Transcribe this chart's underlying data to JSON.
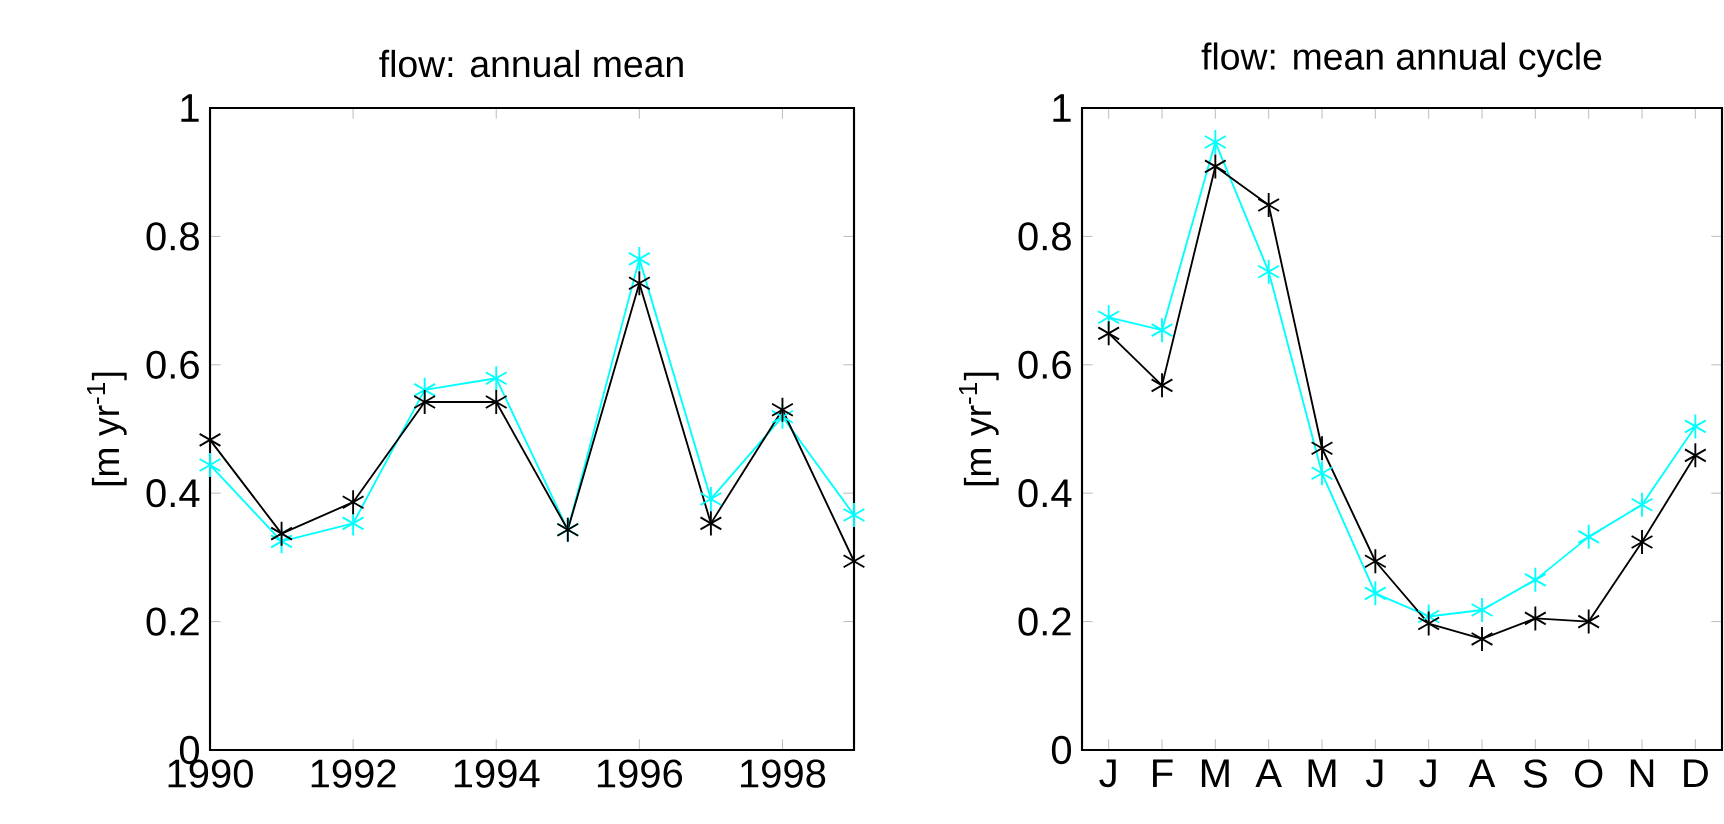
{
  "chart_data": [
    {
      "type": "line",
      "title": "flow: annual mean",
      "ylabel": "[m yr$^{-1}$]",
      "x": [
        1990,
        1991,
        1992,
        1993,
        1994,
        1995,
        1996,
        1997,
        1998,
        1999
      ],
      "series": [
        {
          "color": "#00ffff",
          "values": [
            0.444,
            0.325,
            0.353,
            0.561,
            0.579,
            0.343,
            0.765,
            0.391,
            0.519,
            0.366
          ]
        },
        {
          "color": "#000000",
          "values": [
            0.483,
            0.337,
            0.386,
            0.542,
            0.542,
            0.343,
            0.727,
            0.353,
            0.53,
            0.294
          ]
        }
      ],
      "xlim": [
        1990,
        1999
      ],
      "xticks": [
        1990,
        1992,
        1994,
        1996,
        1998
      ],
      "ylim": [
        0,
        1
      ],
      "yticks": [
        0,
        0.2,
        0.4,
        0.6,
        0.8,
        1
      ],
      "marker": "cross",
      "line_style": "solid",
      "grid": false
    },
    {
      "type": "line",
      "title": "flow: mean annual cycle",
      "ylabel": "[m yr$^{-1}$]",
      "categories": [
        "J",
        "F",
        "M",
        "A",
        "M",
        "J",
        "J",
        "A",
        "S",
        "O",
        "N",
        "D"
      ],
      "series": [
        {
          "color": "#00ffff",
          "values": [
            0.674,
            0.654,
            0.947,
            0.745,
            0.431,
            0.244,
            0.208,
            0.218,
            0.265,
            0.332,
            0.382,
            0.504
          ]
        },
        {
          "color": "#000000",
          "values": [
            0.649,
            0.568,
            0.909,
            0.849,
            0.47,
            0.294,
            0.197,
            0.173,
            0.205,
            0.2,
            0.324,
            0.459
          ]
        }
      ],
      "ylim": [
        0,
        1
      ],
      "yticks": [
        0,
        0.2,
        0.4,
        0.6,
        0.8,
        1
      ],
      "marker": "cross",
      "line_style": "solid",
      "grid": false
    }
  ]
}
